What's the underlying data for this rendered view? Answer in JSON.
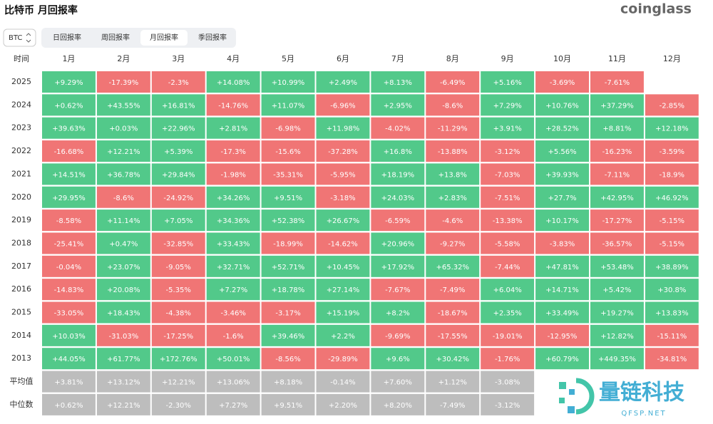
{
  "header": {
    "title": "比特币 月回报率",
    "brand": "coinglass"
  },
  "controls": {
    "asset": "BTC",
    "tabs": [
      "日回报率",
      "周回报率",
      "月回报率",
      "季回报率"
    ],
    "active_tab": 2
  },
  "table": {
    "corner": "时间",
    "columns": [
      "1月",
      "2月",
      "3月",
      "4月",
      "5月",
      "6月",
      "7月",
      "8月",
      "9月",
      "10月",
      "11月",
      "12月"
    ],
    "rows": [
      {
        "label": "2025",
        "cells": [
          "+9.29%",
          "-17.39%",
          "-2.3%",
          "+14.08%",
          "+10.99%",
          "+2.49%",
          "+8.13%",
          "-6.49%",
          "+5.16%",
          "-3.69%",
          "-7.61%",
          null
        ]
      },
      {
        "label": "2024",
        "cells": [
          "+0.62%",
          "+43.55%",
          "+16.81%",
          "-14.76%",
          "+11.07%",
          "-6.96%",
          "+2.95%",
          "-8.6%",
          "+7.29%",
          "+10.76%",
          "+37.29%",
          "-2.85%"
        ]
      },
      {
        "label": "2023",
        "cells": [
          "+39.63%",
          "+0.03%",
          "+22.96%",
          "+2.81%",
          "-6.98%",
          "+11.98%",
          "-4.02%",
          "-11.29%",
          "+3.91%",
          "+28.52%",
          "+8.81%",
          "+12.18%"
        ]
      },
      {
        "label": "2022",
        "cells": [
          "-16.68%",
          "+12.21%",
          "+5.39%",
          "-17.3%",
          "-15.6%",
          "-37.28%",
          "+16.8%",
          "-13.88%",
          "-3.12%",
          "+5.56%",
          "-16.23%",
          "-3.59%"
        ]
      },
      {
        "label": "2021",
        "cells": [
          "+14.51%",
          "+36.78%",
          "+29.84%",
          "-1.98%",
          "-35.31%",
          "-5.95%",
          "+18.19%",
          "+13.8%",
          "-7.03%",
          "+39.93%",
          "-7.11%",
          "-18.9%"
        ]
      },
      {
        "label": "2020",
        "cells": [
          "+29.95%",
          "-8.6%",
          "-24.92%",
          "+34.26%",
          "+9.51%",
          "-3.18%",
          "+24.03%",
          "+2.83%",
          "-7.51%",
          "+27.7%",
          "+42.95%",
          "+46.92%"
        ]
      },
      {
        "label": "2019",
        "cells": [
          "-8.58%",
          "+11.14%",
          "+7.05%",
          "+34.36%",
          "+52.38%",
          "+26.67%",
          "-6.59%",
          "-4.6%",
          "-13.38%",
          "+10.17%",
          "-17.27%",
          "-5.15%"
        ]
      },
      {
        "label": "2018",
        "cells": [
          "-25.41%",
          "+0.47%",
          "-32.85%",
          "+33.43%",
          "-18.99%",
          "-14.62%",
          "+20.96%",
          "-9.27%",
          "-5.58%",
          "-3.83%",
          "-36.57%",
          "-5.15%"
        ]
      },
      {
        "label": "2017",
        "cells": [
          "-0.04%",
          "+23.07%",
          "-9.05%",
          "+32.71%",
          "+52.71%",
          "+10.45%",
          "+17.92%",
          "+65.32%",
          "-7.44%",
          "+47.81%",
          "+53.48%",
          "+38.89%"
        ]
      },
      {
        "label": "2016",
        "cells": [
          "-14.83%",
          "+20.08%",
          "-5.35%",
          "+7.27%",
          "+18.78%",
          "+27.14%",
          "-7.67%",
          "-7.49%",
          "+6.04%",
          "+14.71%",
          "+5.42%",
          "+30.8%"
        ]
      },
      {
        "label": "2015",
        "cells": [
          "-33.05%",
          "+18.43%",
          "-4.38%",
          "-3.46%",
          "-3.17%",
          "+15.19%",
          "+8.2%",
          "-18.67%",
          "+2.35%",
          "+33.49%",
          "+19.27%",
          "+13.83%"
        ]
      },
      {
        "label": "2014",
        "cells": [
          "+10.03%",
          "-31.03%",
          "-17.25%",
          "-1.6%",
          "+39.46%",
          "+2.2%",
          "-9.69%",
          "-17.55%",
          "-19.01%",
          "-12.95%",
          "+12.82%",
          "-15.11%"
        ]
      },
      {
        "label": "2013",
        "cells": [
          "+44.05%",
          "+61.77%",
          "+172.76%",
          "+50.01%",
          "-8.56%",
          "-29.89%",
          "+9.6%",
          "+30.42%",
          "-1.76%",
          "+60.79%",
          "+449.35%",
          "-34.81%"
        ]
      }
    ],
    "summary": [
      {
        "label": "平均值",
        "cells": [
          "+3.81%",
          "+13.12%",
          "+12.21%",
          "+13.06%",
          "+8.18%",
          "-0.14%",
          "+7.60%",
          "+1.12%",
          "-3.08%",
          null,
          null,
          null
        ]
      },
      {
        "label": "中位数",
        "cells": [
          "+0.62%",
          "+12.21%",
          "-2.30%",
          "+7.27%",
          "+9.51%",
          "+2.20%",
          "+8.20%",
          "-7.49%",
          "-3.12%",
          null,
          null,
          null
        ]
      }
    ]
  },
  "watermark": {
    "name": "量链科技",
    "domain": "QFSP.NET"
  }
}
